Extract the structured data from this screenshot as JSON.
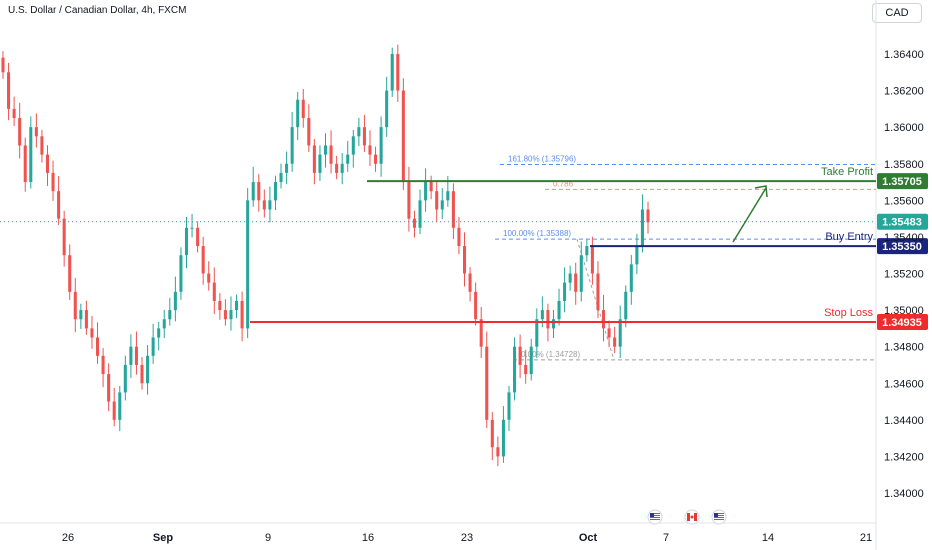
{
  "header": {
    "symbol_title": "U.S. Dollar / Canadian Dollar, 4h, FXCM",
    "currency_button": "CAD"
  },
  "chart_data": {
    "type": "candlestick",
    "title": "U.S. Dollar / Canadian Dollar, 4h, FXCM",
    "y_axis": {
      "ticks": [
        "1.36400",
        "1.36200",
        "1.36000",
        "1.35800",
        "1.35600",
        "1.35400",
        "1.35200",
        "1.35000",
        "1.34800",
        "1.34600",
        "1.34400",
        "1.34200",
        "1.34000"
      ],
      "ylim": [
        1.3392,
        1.3655
      ],
      "position": "right"
    },
    "x_axis": {
      "ticks": [
        {
          "label": "26",
          "bold": false
        },
        {
          "label": "Sep",
          "bold": true
        },
        {
          "label": "9",
          "bold": false
        },
        {
          "label": "16",
          "bold": false
        },
        {
          "label": "23",
          "bold": false
        },
        {
          "label": "Oct",
          "bold": true
        },
        {
          "label": "7",
          "bold": false
        },
        {
          "label": "14",
          "bold": false
        },
        {
          "label": "21",
          "bold": false
        }
      ]
    },
    "price_path": [
      1.363,
      1.361,
      1.3605,
      1.359,
      1.357,
      1.36,
      1.3595,
      1.3585,
      1.3575,
      1.3565,
      1.355,
      1.353,
      1.351,
      1.3495,
      1.35,
      1.349,
      1.3485,
      1.3475,
      1.3465,
      1.345,
      1.344,
      1.3455,
      1.347,
      1.348,
      1.347,
      1.346,
      1.3475,
      1.3485,
      1.349,
      1.3495,
      1.35,
      1.351,
      1.353,
      1.3545,
      1.3545,
      1.3535,
      1.352,
      1.3515,
      1.3505,
      1.35,
      1.3495,
      1.35,
      1.3505,
      1.349,
      1.356,
      1.357,
      1.356,
      1.3555,
      1.356,
      1.357,
      1.3575,
      1.358,
      1.36,
      1.3615,
      1.3605,
      1.359,
      1.3575,
      1.3585,
      1.359,
      1.358,
      1.3575,
      1.358,
      1.3585,
      1.3595,
      1.36,
      1.359,
      1.3585,
      1.358,
      1.36,
      1.362,
      1.364,
      1.362,
      1.357,
      1.355,
      1.3545,
      1.356,
      1.357,
      1.3565,
      1.3555,
      1.356,
      1.3565,
      1.3545,
      1.3535,
      1.352,
      1.351,
      1.3495,
      1.348,
      1.344,
      1.3425,
      1.342,
      1.344,
      1.3455,
      1.348,
      1.347,
      1.3465,
      1.348,
      1.3495,
      1.35,
      1.349,
      1.3495,
      1.3505,
      1.3515,
      1.352,
      1.351,
      1.353,
      1.3535,
      1.352,
      1.35,
      1.349,
      1.3485,
      1.348,
      1.3495,
      1.351,
      1.3525,
      1.3535,
      1.3555,
      1.3548
    ],
    "current_price": "1.35483",
    "levels": [
      {
        "name": "Take Profit",
        "price": 1.35705,
        "tag": "1.35705",
        "color": "#2e7d32"
      },
      {
        "name": "Buy Entry",
        "price": 1.3535,
        "tag": "1.35350",
        "color": "#1a237e"
      },
      {
        "name": "Stop Loss",
        "price": 1.34935,
        "tag": "1.34935",
        "color": "#ef2b2b"
      }
    ],
    "current_tag": {
      "tag": "1.35483",
      "color": "#26a69a"
    },
    "fibonacci": [
      {
        "label": "161.80% (1.35796)",
        "price": 1.35796,
        "color": "#5b8def"
      },
      {
        "label": "0.786",
        "price": 1.3566,
        "color": "#f28b82"
      },
      {
        "label": "100.00% (1.35388)",
        "price": 1.35388,
        "color": "#5b8def"
      },
      {
        "label": "0.00% (1.34728)",
        "price": 1.34728,
        "color": "#9e9e9e"
      }
    ],
    "colors": {
      "up": "#26a69a",
      "down": "#ef5350"
    },
    "event_icons": [
      "us-flag-icon",
      "canada-flag-icon",
      "us-flag-icon"
    ]
  }
}
